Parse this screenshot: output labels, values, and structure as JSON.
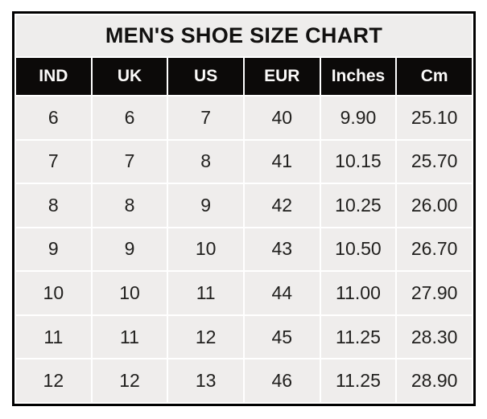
{
  "chart_data": {
    "type": "table",
    "title": "MEN'S SHOE SIZE CHART",
    "columns": [
      "IND",
      "UK",
      "US",
      "EUR",
      "Inches",
      "Cm"
    ],
    "rows": [
      [
        "6",
        "6",
        "7",
        "40",
        "9.90",
        "25.10"
      ],
      [
        "7",
        "7",
        "8",
        "41",
        "10.15",
        "25.70"
      ],
      [
        "8",
        "8",
        "9",
        "42",
        "10.25",
        "26.00"
      ],
      [
        "9",
        "9",
        "10",
        "43",
        "10.50",
        "26.70"
      ],
      [
        "10",
        "10",
        "11",
        "44",
        "11.00",
        "27.90"
      ],
      [
        "11",
        "11",
        "12",
        "45",
        "11.25",
        "28.30"
      ],
      [
        "12",
        "12",
        "13",
        "46",
        "11.25",
        "28.90"
      ]
    ],
    "layout": {
      "legend": "none",
      "grid": "white gridlines between cells",
      "title_position": "top band spanning all columns"
    },
    "colors": {
      "page_background": "#ffffff",
      "outer_border": "#000000",
      "title_background": "#eeedec",
      "title_text": "#121110",
      "header_background": "#0c0a09",
      "header_text": "#fbfaf9",
      "cell_background": "#efedec",
      "cell_text": "#21201e",
      "gridline": "#ffffff"
    }
  }
}
